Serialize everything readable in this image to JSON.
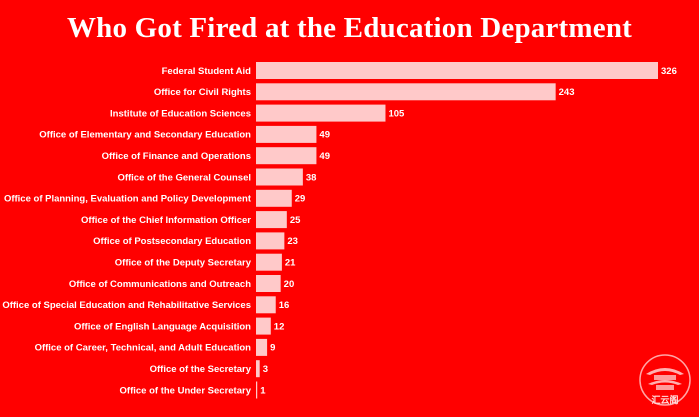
{
  "title": "Who Got Fired at the Education Department",
  "colors": {
    "background": "#FF0000",
    "bar": "#FFC9C9",
    "text": "#FFFFFF"
  },
  "chart_data": {
    "type": "bar",
    "orientation": "horizontal",
    "title": "Who Got Fired at the Education Department",
    "categories": [
      "Federal Student Aid",
      "Office for Civil Rights",
      "Institute of Education Sciences",
      "Office of Elementary and Secondary Education",
      "Office of Finance and Operations",
      "Office of the General Counsel",
      "Office of Planning, Evaluation and Policy Development",
      "Office of the Chief Information Officer",
      "Office of Postsecondary Education",
      "Office of the Deputy Secretary",
      "Office of Communications and Outreach",
      "Office of Special Education and Rehabilitative Services",
      "Office of English Language Acquisition",
      "Office of Career, Technical, and Adult Education",
      "Office of the Secretary",
      "Office of the Under Secretary"
    ],
    "values": [
      326,
      243,
      105,
      49,
      49,
      38,
      29,
      25,
      23,
      21,
      20,
      16,
      12,
      9,
      3,
      1
    ],
    "xlabel": "",
    "ylabel": "",
    "xlim": [
      0,
      326
    ],
    "grid": false,
    "legend": "none"
  },
  "logo": {
    "icon": "pagoda-logo-icon",
    "text": "汇云阁"
  }
}
